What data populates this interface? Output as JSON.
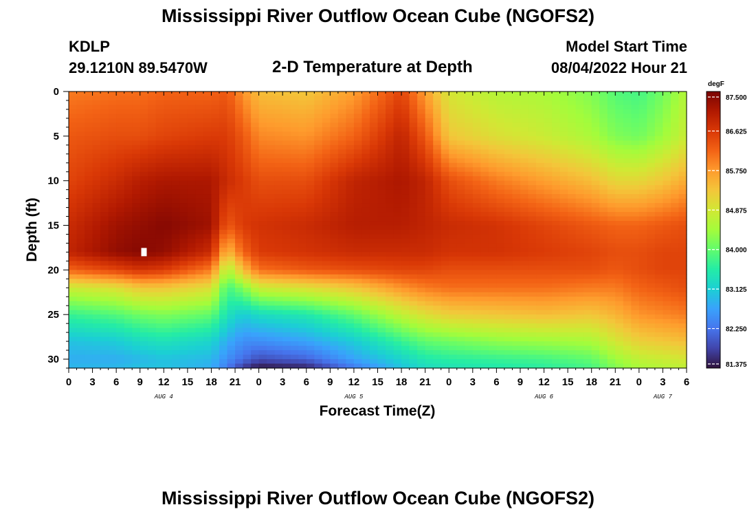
{
  "header": {
    "title": "Mississippi River Outflow Ocean Cube (NGOFS2)",
    "station": "KDLP",
    "coords": "29.1210N  89.5470W",
    "subtitle": "2-D Temperature at Depth",
    "model_start_label": "Model Start Time",
    "model_start_value": "08/04/2022 Hour 21"
  },
  "footer": {
    "title": "Mississippi River Outflow Ocean Cube (NGOFS2)"
  },
  "chart_data": {
    "type": "heatmap",
    "title": "2-D Temperature at Depth",
    "xlabel": "Forecast Time(Z)",
    "ylabel": "Depth (ft)",
    "x_ticks": [
      "0",
      "3",
      "6",
      "9",
      "12",
      "15",
      "18",
      "21",
      "0",
      "3",
      "6",
      "9",
      "12",
      "15",
      "18",
      "21",
      "0",
      "3",
      "6",
      "9",
      "12",
      "15",
      "18",
      "21",
      "0",
      "3",
      "6"
    ],
    "x_dates": [
      {
        "label": "AUG 4",
        "hour": 12
      },
      {
        "label": "AUG 5",
        "hour": 36
      },
      {
        "label": "AUG 6",
        "hour": 60
      },
      {
        "label": "AUG 7",
        "hour": 75
      }
    ],
    "xlim": [
      0,
      78
    ],
    "y_ticks": [
      0,
      5,
      10,
      15,
      20,
      25,
      30
    ],
    "ylim": [
      0,
      31
    ],
    "colorbar": {
      "unit": "degF",
      "ticks": [
        "87.500",
        "86.625",
        "85.750",
        "84.875",
        "84.000",
        "83.125",
        "82.250",
        "81.375"
      ],
      "range": [
        81.375,
        87.5
      ]
    },
    "colormap": [
      "#30123b",
      "#4145ab",
      "#4675ed",
      "#39a2fc",
      "#1bcfd4",
      "#24eca6",
      "#61fc6c",
      "#a4fc3b",
      "#d1e834",
      "#f3c63a",
      "#fe9b2d",
      "#f36315",
      "#d93806",
      "#b11901",
      "#7a0402"
    ],
    "missing_marker": {
      "hour": 9.5,
      "depth": 18
    },
    "temperature_grid": {
      "hours": [
        0,
        6,
        9,
        12,
        18,
        20,
        22,
        24,
        30,
        36,
        42,
        45,
        48,
        54,
        60,
        66,
        69,
        72,
        75,
        78
      ],
      "depths": [
        0,
        5,
        10,
        15,
        18,
        20,
        22,
        25,
        28,
        30,
        31
      ],
      "values": [
        [
          86.0,
          86.1,
          86.1,
          86.2,
          86.2,
          86.3,
          85.8,
          85.4,
          85.3,
          85.7,
          86.5,
          85.7,
          84.9,
          84.6,
          84.5,
          84.2,
          83.9,
          83.8,
          84.1,
          84.6
        ],
        [
          86.3,
          86.4,
          86.4,
          86.5,
          86.6,
          86.6,
          86.3,
          85.9,
          85.8,
          86.2,
          86.9,
          86.3,
          85.3,
          85.0,
          84.8,
          84.5,
          84.2,
          84.1,
          84.4,
          84.8
        ],
        [
          86.5,
          86.8,
          87.0,
          87.1,
          87.1,
          86.8,
          86.6,
          86.4,
          86.4,
          86.9,
          87.1,
          86.9,
          86.4,
          86.0,
          85.7,
          85.4,
          85.1,
          85.1,
          85.3,
          85.6
        ],
        [
          86.8,
          87.2,
          87.3,
          87.4,
          87.2,
          86.3,
          86.6,
          86.7,
          86.8,
          87.0,
          87.0,
          86.9,
          86.8,
          86.7,
          86.5,
          86.3,
          86.2,
          86.2,
          86.3,
          86.4
        ],
        [
          86.9,
          87.3,
          87.4,
          87.3,
          86.8,
          85.4,
          86.2,
          86.6,
          86.7,
          86.8,
          86.8,
          86.8,
          86.7,
          86.7,
          86.6,
          86.5,
          86.4,
          86.4,
          86.5,
          86.5
        ],
        [
          86.2,
          86.5,
          86.7,
          86.6,
          86.0,
          84.5,
          85.4,
          86.1,
          86.3,
          86.4,
          86.5,
          86.5,
          86.4,
          86.4,
          86.4,
          86.4,
          86.3,
          86.4,
          86.5,
          86.5
        ],
        [
          84.8,
          85.0,
          85.3,
          85.3,
          85.0,
          83.8,
          84.2,
          84.8,
          85.0,
          85.3,
          85.8,
          86.0,
          86.1,
          86.1,
          86.1,
          86.0,
          86.0,
          86.2,
          86.3,
          86.4
        ],
        [
          83.7,
          83.9,
          84.1,
          84.2,
          84.0,
          83.4,
          83.1,
          83.3,
          83.5,
          84.0,
          84.7,
          85.0,
          85.2,
          85.3,
          85.4,
          85.3,
          85.5,
          85.8,
          85.9,
          86.0
        ],
        [
          83.0,
          83.1,
          83.3,
          83.4,
          83.2,
          82.8,
          82.5,
          82.5,
          82.7,
          83.1,
          83.7,
          84.0,
          84.1,
          84.3,
          84.4,
          84.5,
          84.9,
          85.2,
          85.3,
          85.4
        ],
        [
          82.8,
          82.8,
          82.9,
          83.0,
          82.9,
          82.5,
          82.2,
          81.9,
          82.1,
          82.7,
          83.2,
          83.5,
          83.6,
          83.7,
          83.8,
          84.0,
          84.4,
          84.7,
          84.8,
          84.9
        ],
        [
          82.9,
          82.9,
          83.0,
          83.0,
          82.8,
          82.3,
          81.7,
          81.4,
          81.5,
          82.3,
          83.0,
          83.3,
          83.4,
          83.5,
          83.6,
          83.8,
          84.2,
          84.5,
          84.6,
          84.7
        ]
      ]
    }
  }
}
